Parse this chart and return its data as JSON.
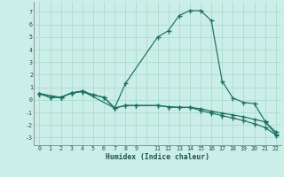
{
  "background_color": "#cceee8",
  "grid_color": "#aaddcc",
  "line_color": "#1a7060",
  "xlabel": "Humidex (Indice chaleur)",
  "xlim": [
    -0.5,
    22.5
  ],
  "ylim": [
    -3.6,
    7.8
  ],
  "xticks": [
    0,
    1,
    2,
    3,
    4,
    5,
    6,
    7,
    8,
    9,
    11,
    12,
    13,
    14,
    15,
    16,
    17,
    18,
    19,
    20,
    21,
    22
  ],
  "yticks": [
    -3,
    -2,
    -1,
    0,
    1,
    2,
    3,
    4,
    5,
    6,
    7
  ],
  "series1_x": [
    0,
    1,
    2,
    3,
    4,
    5,
    6,
    7,
    8,
    9,
    11,
    12,
    13,
    14,
    15,
    16,
    17,
    18,
    19,
    20,
    21,
    22
  ],
  "series1_y": [
    0.5,
    0.2,
    0.2,
    0.55,
    0.65,
    0.4,
    0.2,
    -0.65,
    -0.45,
    -0.45,
    -0.45,
    -0.55,
    -0.6,
    -0.6,
    -0.7,
    -0.9,
    -1.05,
    -1.2,
    -1.35,
    -1.55,
    -1.75,
    -2.55
  ],
  "series2_x": [
    0,
    1,
    2,
    3,
    4,
    5,
    6,
    7,
    8,
    9,
    11,
    12,
    13,
    14,
    15,
    16,
    17,
    18,
    19,
    20,
    21,
    22
  ],
  "series2_y": [
    0.5,
    0.2,
    0.2,
    0.55,
    0.7,
    0.4,
    0.2,
    -0.65,
    -0.45,
    -0.45,
    -0.45,
    -0.55,
    -0.6,
    -0.6,
    -0.85,
    -1.05,
    -1.25,
    -1.45,
    -1.65,
    -1.9,
    -2.2,
    -2.8
  ],
  "series3_x": [
    0,
    2,
    3,
    4,
    7,
    8,
    11,
    12,
    13,
    14,
    15,
    16,
    17,
    18,
    19,
    20,
    21,
    22
  ],
  "series3_y": [
    0.5,
    0.2,
    0.55,
    0.7,
    -0.65,
    1.3,
    5.0,
    5.5,
    6.7,
    7.1,
    7.1,
    6.3,
    1.5,
    0.15,
    -0.2,
    -0.3,
    -1.7,
    -2.75
  ]
}
